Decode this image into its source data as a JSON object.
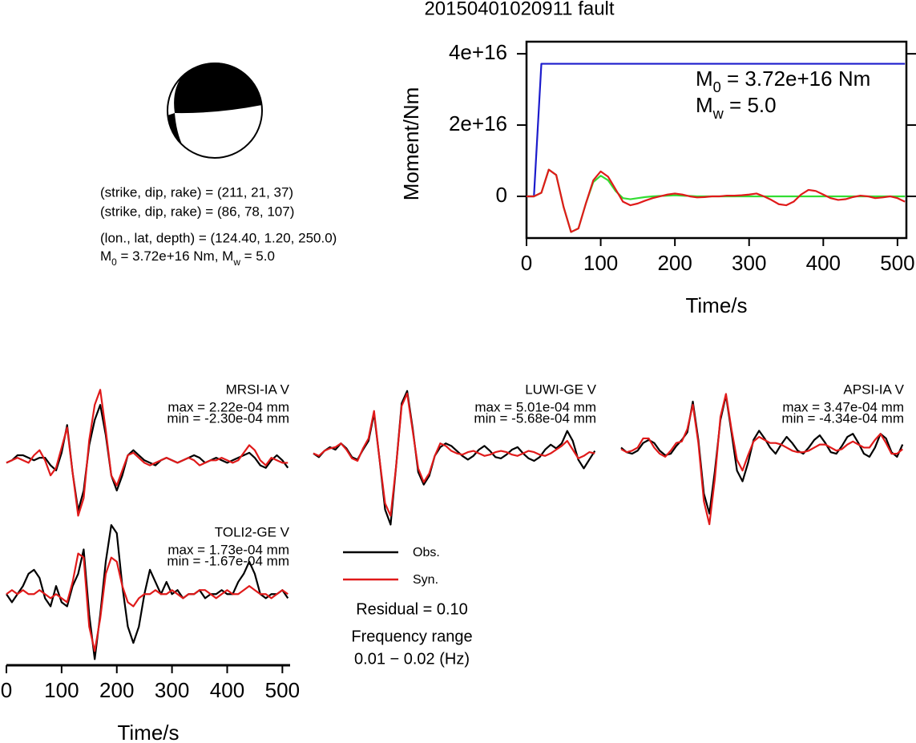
{
  "title": "20150401020911 fault",
  "focal_mechanism": {
    "lines": [
      "(strike, dip, rake) = (211, 21, 37)",
      "(strike, dip, rake) = (86, 78, 107)",
      "(lon., lat, depth) = (124.40, 1.20, 250.0)"
    ],
    "moment_line": [
      "M",
      "0",
      " = 3.72e+16 Nm, M",
      "w",
      " = 5.0"
    ]
  },
  "chart_data": [
    {
      "type": "line",
      "xlabel": "Time/s",
      "ylabel": "Moment/Nm",
      "annotations": [
        [
          "M",
          "0",
          " = 3.72e+16 Nm"
        ],
        [
          "M",
          "w",
          " = 5.0"
        ]
      ],
      "xlim": [
        0,
        512
      ],
      "ylim": [
        -1.17e+16,
        4.34e+16
      ],
      "xticks": [
        0,
        100,
        200,
        300,
        400,
        500
      ],
      "yticks": [
        0,
        {
          "value": 2e+16,
          "label": "2e+16"
        },
        {
          "value": 4e+16,
          "label": "4e+16"
        }
      ],
      "x": [
        0,
        10,
        20,
        30,
        40,
        50,
        60,
        70,
        80,
        90,
        100,
        110,
        120,
        130,
        140,
        150,
        160,
        170,
        180,
        190,
        200,
        210,
        220,
        230,
        240,
        250,
        260,
        270,
        280,
        290,
        300,
        310,
        320,
        330,
        340,
        350,
        360,
        370,
        380,
        390,
        400,
        410,
        420,
        430,
        440,
        450,
        460,
        470,
        480,
        490,
        500,
        510
      ],
      "series": [
        {
          "color": "#1c1ccc",
          "values": [
            0,
            0,
            3.72e+16,
            3.72e+16,
            3.72e+16,
            3.72e+16,
            3.72e+16,
            3.72e+16,
            3.72e+16,
            3.72e+16,
            3.72e+16,
            3.72e+16,
            3.72e+16,
            3.72e+16,
            3.72e+16,
            3.72e+16,
            3.72e+16,
            3.72e+16,
            3.72e+16,
            3.72e+16,
            3.72e+16,
            3.72e+16,
            3.72e+16,
            3.72e+16,
            3.72e+16,
            3.72e+16,
            3.72e+16,
            3.72e+16,
            3.72e+16,
            3.72e+16,
            3.72e+16,
            3.72e+16,
            3.72e+16,
            3.72e+16,
            3.72e+16,
            3.72e+16,
            3.72e+16,
            3.72e+16,
            3.72e+16,
            3.72e+16,
            3.72e+16,
            3.72e+16,
            3.72e+16,
            3.72e+16,
            3.72e+16,
            3.72e+16,
            3.72e+16,
            3.72e+16,
            3.72e+16,
            3.72e+16,
            3.72e+16,
            3.72e+16
          ]
        },
        {
          "color": "#33dd33",
          "values": [
            0,
            0,
            1000000000000000.0,
            7500000000000000.0,
            6000000000000000.0,
            -3000000000000000.0,
            -1e+16,
            -9000000000000000.0,
            -2000000000000000.0,
            4000000000000000.0,
            5800000000000000.0,
            4500000000000000.0,
            1500000000000000.0,
            -500000000000000.0,
            -800000000000000.0,
            -500000000000000.0,
            -200000000000000.0,
            0,
            100000000000000.0,
            200000000000000.0,
            300000000000000.0,
            200000000000000.0,
            100000000000000.0,
            0,
            0,
            0,
            0,
            0,
            0,
            0,
            0,
            0,
            0,
            0,
            0,
            0,
            0,
            0,
            0,
            0,
            0,
            0,
            0,
            0,
            0,
            0,
            0,
            0,
            0,
            0,
            0,
            0
          ]
        },
        {
          "color": "#e01a1a",
          "values": [
            0,
            0,
            1000000000000000.0,
            7500000000000000.0,
            6000000000000000.0,
            -3000000000000000.0,
            -1e+16,
            -9000000000000000.0,
            -2000000000000000.0,
            4500000000000000.0,
            7000000000000000.0,
            5500000000000000.0,
            2000000000000000.0,
            -1500000000000000.0,
            -2500000000000000.0,
            -2000000000000000.0,
            -1200000000000000.0,
            -500000000000000.0,
            0,
            500000000000000.0,
            800000000000000.0,
            500000000000000.0,
            0,
            -300000000000000.0,
            -200000000000000.0,
            0,
            0,
            200000000000000.0,
            200000000000000.0,
            300000000000000.0,
            500000000000000.0,
            800000000000000.0,
            0,
            -1000000000000000.0,
            -2200000000000000.0,
            -2500000000000000.0,
            -1500000000000000.0,
            500000000000000.0,
            1800000000000000.0,
            1500000000000000.0,
            500000000000000.0,
            -500000000000000.0,
            -1000000000000000.0,
            -800000000000000.0,
            -200000000000000.0,
            200000000000000.0,
            0,
            -500000000000000.0,
            -300000000000000.0,
            0,
            -500000000000000.0,
            -1500000000000000.0
          ]
        }
      ]
    },
    {
      "type": "line",
      "station": "MRSI-IA V",
      "max_label": "max = 2.22e-04 mm",
      "min_label": "min = -2.30e-04 mm",
      "xlim": [
        0,
        514
      ],
      "ylim": [
        -0.00026,
        0.0003
      ],
      "x": [
        0,
        10,
        20,
        30,
        40,
        50,
        60,
        70,
        80,
        90,
        100,
        110,
        120,
        130,
        140,
        150,
        160,
        170,
        180,
        190,
        200,
        210,
        220,
        230,
        240,
        250,
        260,
        270,
        280,
        290,
        300,
        310,
        320,
        330,
        340,
        350,
        360,
        370,
        380,
        390,
        400,
        410,
        420,
        430,
        440,
        450,
        460,
        470,
        480,
        490,
        500,
        510
      ],
      "series": [
        {
          "name": "Obs.",
          "color": "#000000",
          "values": [
            -1e-05,
            0,
            2e-05,
            2e-05,
            1e-05,
            0,
            1e-05,
            1e-05,
            -2e-05,
            -4e-05,
            3e-05,
            0.00014,
            -5e-05,
            -0.0002,
            -0.00012,
            6e-05,
            0.00016,
            0.00022,
            0.0001,
            -6e-05,
            -0.00012,
            -6e-05,
            2e-05,
            4e-05,
            2e-05,
            0,
            -1e-05,
            -2e-05,
            0,
            1e-05,
            0,
            -1e-05,
            0,
            1e-05,
            2e-05,
            1e-05,
            -1e-05,
            0,
            1e-05,
            0,
            -1e-05,
            0,
            1e-05,
            2e-05,
            3e-05,
            1e-05,
            -2e-05,
            -3e-05,
            0,
            2e-05,
            0,
            -3e-05
          ]
        },
        {
          "name": "Syn.",
          "color": "#e01a1a",
          "values": [
            -1e-05,
            0,
            1e-05,
            0,
            -1e-05,
            2e-05,
            4e-05,
            0,
            -6e-05,
            -3e-05,
            5e-05,
            0.00013,
            -5e-05,
            -0.00022,
            -0.00015,
            8e-05,
            0.00022,
            0.00028,
            0.00012,
            -6e-05,
            -0.0001,
            -4e-05,
            2e-05,
            3e-05,
            1e-05,
            -1e-05,
            -2e-05,
            -1e-05,
            0,
            1e-05,
            0,
            -1e-05,
            0,
            1e-05,
            0,
            -2e-05,
            -1e-05,
            0,
            0,
            1e-05,
            0,
            -1e-05,
            0,
            3e-05,
            6e-05,
            4e-05,
            0,
            -2e-05,
            1e-05,
            0,
            -1e-05,
            -1e-05
          ]
        }
      ]
    },
    {
      "type": "line",
      "station": "LUWI-GE V",
      "max_label": "max = 5.01e-04 mm",
      "min_label": "min = -5.68e-04 mm",
      "xlim": [
        0,
        514
      ],
      "ylim": [
        -0.00058,
        0.00055
      ],
      "x": [
        0,
        10,
        20,
        30,
        40,
        50,
        60,
        70,
        80,
        90,
        100,
        110,
        120,
        130,
        140,
        150,
        160,
        170,
        180,
        190,
        200,
        210,
        220,
        230,
        240,
        250,
        260,
        270,
        280,
        290,
        300,
        310,
        320,
        330,
        340,
        350,
        360,
        370,
        380,
        390,
        400,
        410,
        420,
        430,
        440,
        450,
        460,
        470,
        480,
        490,
        500,
        510
      ],
      "series": [
        {
          "color": "#000000",
          "values": [
            0,
            -3e-05,
            2e-05,
            5e-05,
            3e-05,
            8e-05,
            4e-05,
            -3e-05,
            -5e-05,
            3e-05,
            0.0001,
            0.00032,
            -5e-05,
            -0.00045,
            -0.00057,
            -0.0001,
            0.0004,
            0.0005,
            0.0002,
            -0.00015,
            -0.00025,
            -0.00018,
            -2e-05,
            5e-05,
            8e-05,
            6e-05,
            2e-05,
            -2e-05,
            -5e-05,
            -2e-05,
            3e-05,
            6e-05,
            2e-05,
            -3e-05,
            -4e-05,
            -1e-05,
            3e-05,
            5e-05,
            0,
            -4e-05,
            -6e-05,
            -3e-05,
            3e-05,
            7e-05,
            4e-05,
            8e-05,
            0.00018,
            0.0001,
            -5e-05,
            -0.00012,
            -5e-05,
            2e-05
          ]
        },
        {
          "color": "#e01a1a",
          "values": [
            0,
            -2e-05,
            2e-05,
            4e-05,
            5e-05,
            8e-05,
            3e-05,
            -4e-05,
            -6e-05,
            4e-05,
            0.00012,
            0.00034,
            -5e-05,
            -0.0004,
            -0.0005,
            -0.0001,
            0.00038,
            0.00048,
            0.00018,
            -0.00012,
            -0.00023,
            -0.00016,
            -2e-05,
            8e-05,
            6e-05,
            2e-05,
            0,
            -1e-05,
            1e-05,
            2e-05,
            0,
            -2e-05,
            -1e-05,
            1e-05,
            2e-05,
            1e-05,
            -1e-05,
            -2e-05,
            0,
            2e-05,
            1e-05,
            -1e-05,
            -2e-05,
            0,
            3e-05,
            6e-05,
            0.0001,
            3e-05,
            -4e-05,
            -2e-05,
            1e-05,
            0
          ]
        }
      ]
    },
    {
      "type": "line",
      "station": "APSI-IA V",
      "max_label": "max = 3.47e-04 mm",
      "min_label": "min = -4.34e-04 mm",
      "xlim": [
        0,
        514
      ],
      "ylim": [
        -0.00051,
        0.00041
      ],
      "x": [
        0,
        10,
        20,
        30,
        40,
        50,
        60,
        70,
        80,
        90,
        100,
        110,
        120,
        130,
        140,
        150,
        160,
        170,
        180,
        190,
        200,
        210,
        220,
        230,
        240,
        250,
        260,
        270,
        280,
        290,
        300,
        310,
        320,
        330,
        340,
        350,
        360,
        370,
        380,
        390,
        400,
        410,
        420,
        430,
        440,
        450,
        460,
        470,
        480,
        490,
        500,
        510
      ],
      "series": [
        {
          "color": "#000000",
          "values": [
            0,
            -3e-05,
            -4e-05,
            -2e-05,
            3e-05,
            5e-05,
            3e-05,
            -2e-05,
            -5e-05,
            -4e-05,
            1e-05,
            5e-05,
            0.0001,
            0.0003,
            5e-05,
            -0.0003,
            -0.00043,
            -0.00015,
            0.00018,
            0.00034,
            0.0001,
            -0.00015,
            -0.00022,
            -0.0001,
            5e-05,
            0.00011,
            6e-05,
            0,
            -4e-05,
            2e-05,
            7e-05,
            3e-05,
            -2e-05,
            -4e-05,
            0,
            5e-05,
            8e-05,
            3e-05,
            -3e-05,
            -4e-05,
            1e-05,
            7e-05,
            9e-05,
            3e-05,
            -4e-05,
            -6e-05,
            0,
            9e-05,
            6e-05,
            -3e-05,
            -6e-05,
            2e-05
          ]
        },
        {
          "color": "#e01a1a",
          "values": [
            -1e-05,
            -3e-05,
            -2e-05,
            0,
            6e-05,
            6e-05,
            0,
            -4e-05,
            -6e-05,
            -2e-05,
            3e-05,
            4e-05,
            0.00012,
            0.00028,
            3e-05,
            -0.00035,
            -0.0005,
            -0.0002,
            0.0002,
            0.00035,
            0.00012,
            -8e-05,
            -0.00015,
            -5e-05,
            4e-05,
            7e-05,
            5e-05,
            3e-05,
            3e-05,
            2e-05,
            0,
            -2e-05,
            -3e-05,
            -3e-05,
            -2e-05,
            0,
            2e-05,
            2e-05,
            0,
            -2e-05,
            -1e-05,
            2e-05,
            4e-05,
            2e-05,
            0,
            0,
            5e-05,
            9e-05,
            3e-05,
            -4e-05,
            -4e-05,
            -1e-05
          ]
        }
      ]
    },
    {
      "type": "line",
      "station": "TOLI2-GE V",
      "max_label": "max = 1.73e-04 mm",
      "min_label": "min = -1.67e-04 mm",
      "xlabel": "Time/s",
      "xlim": [
        0,
        514
      ],
      "ylim": [
        -0.000175,
        0.00018
      ],
      "xticks": [
        0,
        100,
        200,
        300,
        400,
        500
      ],
      "x": [
        0,
        10,
        20,
        30,
        40,
        50,
        60,
        70,
        80,
        90,
        100,
        110,
        120,
        130,
        140,
        150,
        160,
        170,
        180,
        190,
        200,
        210,
        220,
        230,
        240,
        250,
        260,
        270,
        280,
        290,
        300,
        310,
        320,
        330,
        340,
        350,
        360,
        370,
        380,
        390,
        400,
        410,
        420,
        430,
        440,
        450,
        460,
        470,
        480,
        490,
        500,
        510
      ],
      "series": [
        {
          "color": "#000000",
          "values": [
            0,
            -2e-05,
            0,
            2e-05,
            5e-05,
            6e-05,
            4e-05,
            -1e-05,
            -3e-05,
            2e-05,
            -2e-05,
            -3e-05,
            2e-05,
            5e-05,
            0.00011,
            -5e-05,
            -0.00016,
            -5e-05,
            8e-05,
            0.00017,
            0.00015,
            2e-05,
            -8e-05,
            -0.00012,
            -8e-05,
            0,
            6e-05,
            3e-05,
            0,
            3e-05,
            0,
            1e-05,
            -1e-05,
            0,
            0,
            1e-05,
            -1e-05,
            0,
            0,
            1e-05,
            0,
            0,
            3e-05,
            5e-05,
            8e-05,
            5e-05,
            0,
            -1e-05,
            0,
            0,
            1e-05,
            -1e-05
          ]
        },
        {
          "color": "#e01a1a",
          "values": [
            0,
            1e-05,
            0,
            1e-05,
            0,
            0,
            1e-05,
            0,
            -1e-05,
            0,
            -1e-05,
            -2e-05,
            3e-05,
            0.0001,
            9e-05,
            -8e-05,
            -0.00014,
            -6e-05,
            5e-05,
            9e-05,
            8e-05,
            2e-05,
            -2e-05,
            -3e-05,
            -1e-05,
            0,
            0,
            1e-05,
            0,
            0,
            1e-05,
            0,
            -1e-05,
            0,
            0,
            1e-05,
            1e-05,
            0,
            -1e-05,
            0,
            1e-05,
            0,
            0,
            1e-05,
            2e-05,
            1e-05,
            0,
            0,
            -1e-05,
            0,
            1e-05,
            0
          ]
        }
      ]
    }
  ],
  "notes": {
    "residual": "Residual = 0.10",
    "frequency_title": "Frequency range",
    "frequency_range": "0.01 − 0.02 (Hz)"
  }
}
